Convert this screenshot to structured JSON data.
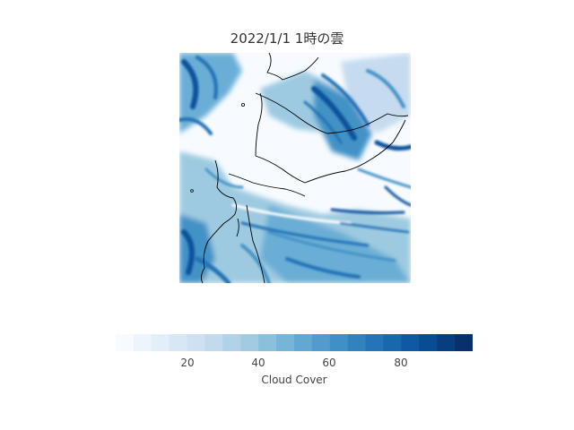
{
  "title": "2022/1/1 1時の雲",
  "map": {
    "variable": "Cloud Cover",
    "colormap": [
      "#f7fbff",
      "#deebf7",
      "#c6dbef",
      "#9ecae1",
      "#6baed6",
      "#4292c6",
      "#2171b5",
      "#08519c",
      "#08306b"
    ],
    "coastline_color": "#000000"
  },
  "colorbar": {
    "label": "Cloud Cover",
    "range": [
      0,
      100
    ],
    "ticks": [
      20,
      40,
      60,
      80
    ],
    "tick_labels": [
      "20",
      "40",
      "60",
      "80"
    ],
    "levels": 20
  }
}
